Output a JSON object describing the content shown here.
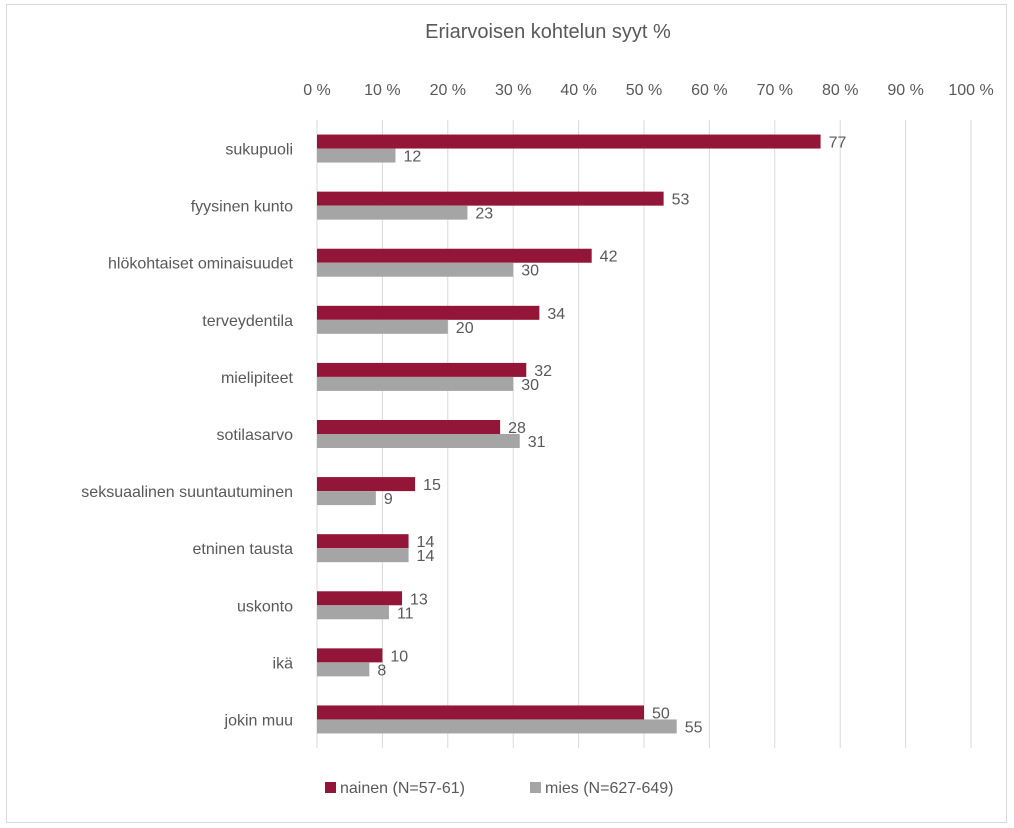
{
  "chart_data": {
    "type": "bar",
    "orientation": "horizontal",
    "title": "Eriarvoisen kohtelun syyt %",
    "xlabel": "",
    "ylabel": "",
    "xlim": [
      0,
      100
    ],
    "x_ticks": [
      "0 %",
      "10 %",
      "20 %",
      "30 %",
      "40 %",
      "50 %",
      "60 %",
      "70 %",
      "80 %",
      "90 %",
      "100 %"
    ],
    "grid": true,
    "legend_position": "bottom",
    "categories": [
      "sukupuoli",
      "fyysinen kunto",
      "hlökohtaiset ominaisuudet",
      "terveydentila",
      "mielipiteet",
      "sotilasarvo",
      "seksuaalinen suuntautuminen",
      "etninen tausta",
      "uskonto",
      "ikä",
      "jokin muu"
    ],
    "series": [
      {
        "name": "nainen (N=57-61)",
        "color": "#931638",
        "values": [
          77,
          53,
          42,
          34,
          32,
          28,
          15,
          14,
          13,
          10,
          50
        ]
      },
      {
        "name": "mies (N=627-649)",
        "color": "#a5a5a5",
        "values": [
          12,
          23,
          30,
          20,
          30,
          31,
          9,
          14,
          11,
          8,
          55
        ]
      }
    ]
  }
}
